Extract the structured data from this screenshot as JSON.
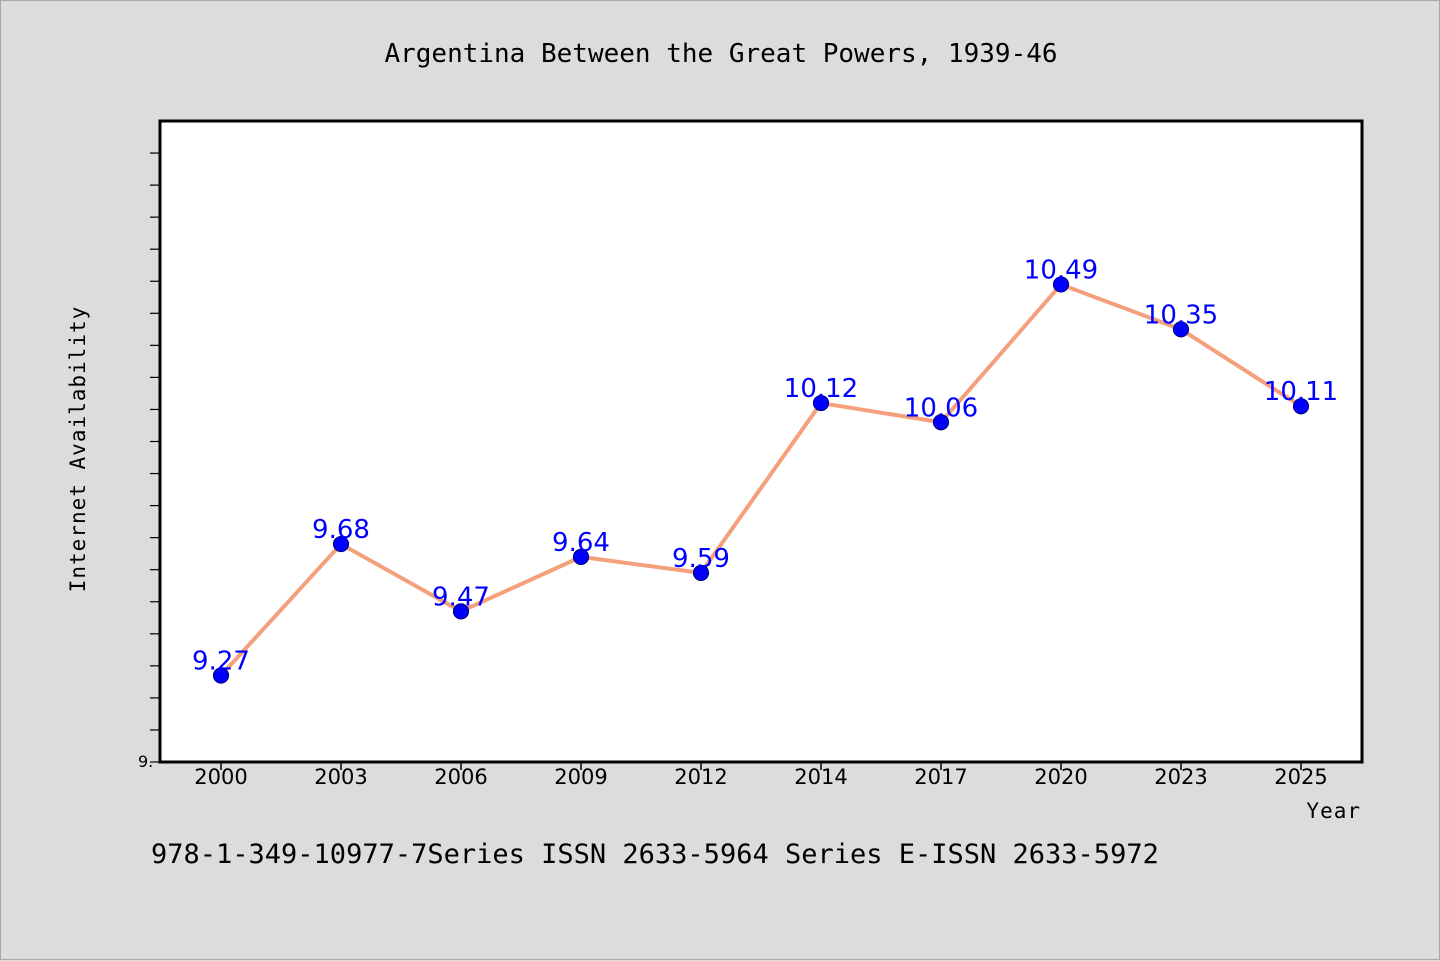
{
  "chart_data": {
    "type": "line",
    "title": "Argentina Between the Great Powers, 1939-46",
    "xlabel": "Year",
    "ylabel": "Internet Availability",
    "footer": "978-1-349-10977-7Series ISSN 2633-5964 Series E-ISSN 2633-5972",
    "categories": [
      "2000",
      "2003",
      "2006",
      "2009",
      "2012",
      "2014",
      "2017",
      "2020",
      "2023",
      "2025"
    ],
    "series": [
      {
        "values": [
          9.27,
          9.68,
          9.47,
          9.64,
          9.59,
          10.12,
          10.06,
          10.49,
          10.35,
          10.11
        ]
      }
    ],
    "data_labels": [
      "9.27",
      "9.68",
      "9.47",
      "9.64",
      "9.59",
      "10.12",
      "10.06",
      "10.49",
      "10.35",
      "10.11"
    ],
    "y_tick_labels": [
      "9."
    ],
    "ylim": [
      9.0,
      11.0
    ],
    "grid": false,
    "colors": {
      "background": "#dcdcdc",
      "plot_background": "#ffffff",
      "line": "#f4a07c",
      "marker": "#0000ff",
      "marker_edge": "#00008b",
      "data_label": "#0000ff"
    }
  }
}
